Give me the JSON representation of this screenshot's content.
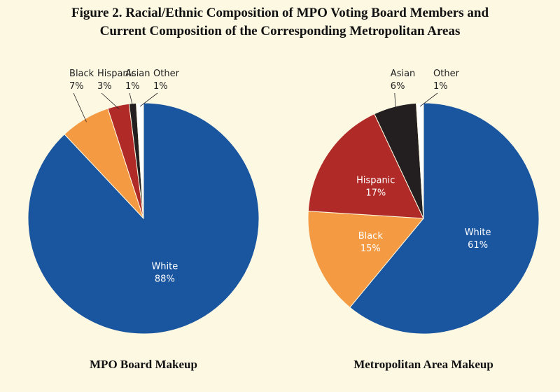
{
  "title": [
    "Figure 2. Racial/Ethnic Composition of MPO Voting Board Members and",
    "Current Composition of the Corresponding Metropolitan Areas"
  ],
  "chart_data": [
    {
      "type": "pie",
      "title": "MPO Board Makeup",
      "categories": [
        "White",
        "Black",
        "Hispanic",
        "Asian",
        "Other"
      ],
      "values": [
        88,
        7,
        3,
        1,
        1
      ],
      "value_labels": [
        "88%",
        "7%",
        "3%",
        "1%",
        "1%"
      ],
      "colors": [
        "#1a55a0",
        "#f39a43",
        "#b02a27",
        "#231f20",
        "#ffffff"
      ]
    },
    {
      "type": "pie",
      "title": "Metropolitan Area Makeup",
      "categories": [
        "White",
        "Black",
        "Hispanic",
        "Asian",
        "Other"
      ],
      "values": [
        61,
        15,
        17,
        6,
        1
      ],
      "value_labels": [
        "61%",
        "15%",
        "17%",
        "6%",
        "1%"
      ],
      "colors": [
        "#1a55a0",
        "#f39a43",
        "#b02a27",
        "#231f20",
        "#ffffff"
      ]
    }
  ]
}
